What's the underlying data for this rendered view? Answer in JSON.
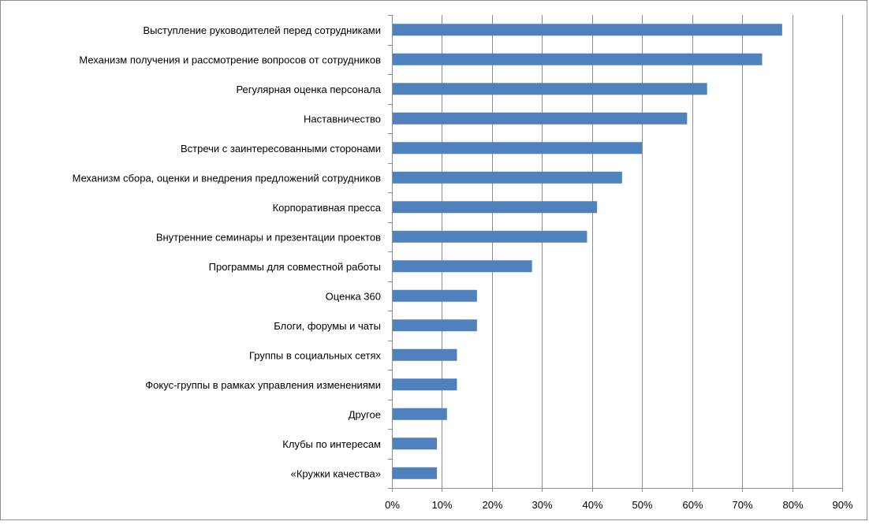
{
  "chart_data": {
    "type": "bar",
    "orientation": "horizontal",
    "title": "",
    "xlabel": "",
    "ylabel": "",
    "xlim": [
      0,
      90
    ],
    "x_ticks": [
      "0%",
      "10%",
      "20%",
      "30%",
      "40%",
      "50%",
      "60%",
      "70%",
      "80%",
      "90%"
    ],
    "grid": "vertical major gridlines",
    "legend": "none",
    "bar_color": "#4f81bd",
    "categories": [
      "Выступление руководителей перед сотрудниками",
      "Механизм получения  и рассмотрение вопросов от сотрудников",
      "Регулярная оценка персонала",
      "Наставничество",
      "Встречи с заинтересованными сторонами",
      "Механизм сбора, оценки и внедрения предложений сотрудников",
      "Корпоративная пресса",
      "Внутренние семинары и презентации проектов",
      "Программы для совместной работы",
      "Оценка 360",
      "Блоги, форумы и чаты",
      "Группы в социальных сетях",
      "Фокус-группы в рамках управления изменениями",
      "Другое",
      "Клубы по интересам",
      "«Кружки качества»"
    ],
    "values": [
      78,
      74,
      63,
      59,
      50,
      46,
      41,
      39,
      28,
      17,
      17,
      13,
      13,
      11,
      9,
      9
    ]
  }
}
